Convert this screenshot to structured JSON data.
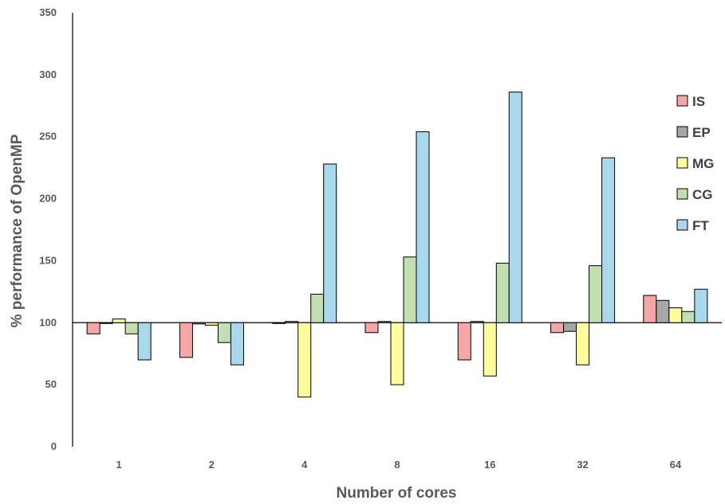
{
  "chart_data": {
    "type": "bar",
    "title": "",
    "xlabel": "Number of cores",
    "ylabel": "% performance of OpenMP",
    "categories": [
      "1",
      "2",
      "4",
      "8",
      "16",
      "32",
      "64"
    ],
    "baseline": 100,
    "ylim": [
      0,
      350
    ],
    "yticks": [
      0,
      50,
      100,
      150,
      200,
      250,
      300,
      350
    ],
    "grid": false,
    "legend_position": "right",
    "series": [
      {
        "name": "IS",
        "color": "#f4a7a6",
        "values": [
          91,
          72,
          100,
          92,
          70,
          92,
          122
        ]
      },
      {
        "name": "EP",
        "color": "#a6a6a6",
        "values": [
          100,
          99,
          101,
          101,
          101,
          93,
          118
        ]
      },
      {
        "name": "MG",
        "color": "#fdfd9e",
        "values": [
          103,
          98,
          40,
          50,
          57,
          66,
          112
        ]
      },
      {
        "name": "CG",
        "color": "#c2dfb1",
        "values": [
          91,
          84,
          123,
          153,
          148,
          146,
          109
        ]
      },
      {
        "name": "FT",
        "color": "#a9d8ec",
        "values": [
          70,
          66,
          228,
          254,
          286,
          233,
          127
        ]
      }
    ]
  }
}
